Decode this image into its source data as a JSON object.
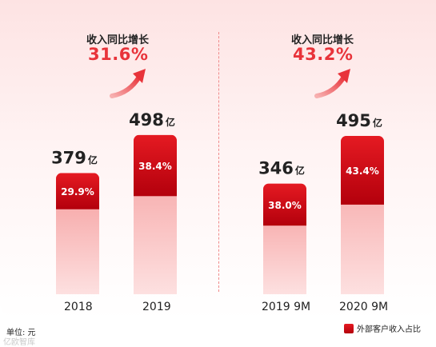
{
  "left_panel": {
    "growth_label": "收入同比增长",
    "growth_value": "31.6%"
  },
  "right_panel": {
    "growth_label": "收入同比增长",
    "growth_value": "43.2%"
  },
  "unit_label": "单位: 元",
  "legend_label": "外部客户收入占比",
  "watermark": "亿欧智库",
  "colors": {
    "accent": "#e8333a",
    "dark_red": "#c00010",
    "light_red": "#f7a0a0"
  },
  "chart_data": {
    "type": "bar",
    "categories": [
      "2018",
      "2019",
      "2019 9M",
      "2020 9M"
    ],
    "values": [
      379,
      498,
      346,
      495
    ],
    "value_labels": [
      "379",
      "498",
      "346",
      "495"
    ],
    "value_unit": "亿",
    "series": [
      {
        "name": "外部客户收入占比",
        "values": [
          "29.9%",
          "38.4%",
          "38.0%",
          "43.4%"
        ]
      }
    ],
    "yoy_growth": [
      "31.6%",
      "43.2%"
    ]
  }
}
